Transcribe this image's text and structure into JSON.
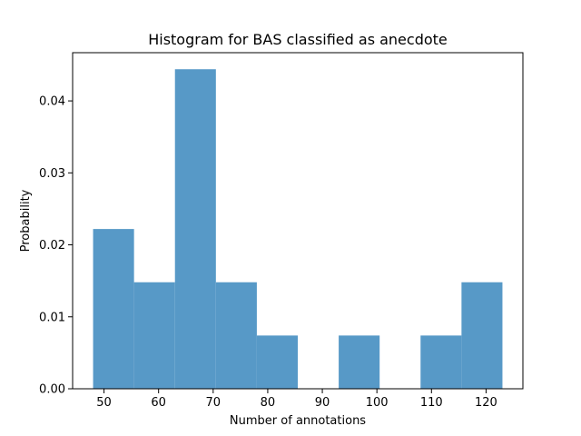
{
  "chart_data": {
    "type": "bar",
    "title": "Histogram for BAS classified as anecdote",
    "xlabel": "Number of annotations",
    "ylabel": "Probability",
    "xlim": [
      44.25,
      126.75
    ],
    "ylim": [
      0,
      0.0467
    ],
    "grid": false,
    "bar_color": "#5799c7",
    "bins": [
      {
        "x0": 48.0,
        "x1": 55.5,
        "value": 0.0222
      },
      {
        "x0": 55.5,
        "x1": 63.0,
        "value": 0.0148
      },
      {
        "x0": 63.0,
        "x1": 70.5,
        "value": 0.0444
      },
      {
        "x0": 70.5,
        "x1": 78.0,
        "value": 0.0148
      },
      {
        "x0": 78.0,
        "x1": 85.5,
        "value": 0.0074
      },
      {
        "x0": 85.5,
        "x1": 93.0,
        "value": 0
      },
      {
        "x0": 93.0,
        "x1": 100.5,
        "value": 0.0074
      },
      {
        "x0": 100.5,
        "x1": 108.0,
        "value": 0
      },
      {
        "x0": 108.0,
        "x1": 115.5,
        "value": 0.0074
      },
      {
        "x0": 115.5,
        "x1": 123.0,
        "value": 0.0148
      }
    ],
    "xticks": [
      {
        "value": 50,
        "label": "50"
      },
      {
        "value": 60,
        "label": "60"
      },
      {
        "value": 70,
        "label": "70"
      },
      {
        "value": 80,
        "label": "80"
      },
      {
        "value": 90,
        "label": "90"
      },
      {
        "value": 100,
        "label": "100"
      },
      {
        "value": 110,
        "label": "110"
      },
      {
        "value": 120,
        "label": "120"
      }
    ],
    "yticks": [
      {
        "value": 0.0,
        "label": "0.00"
      },
      {
        "value": 0.01,
        "label": "0.01"
      },
      {
        "value": 0.02,
        "label": "0.02"
      },
      {
        "value": 0.03,
        "label": "0.03"
      },
      {
        "value": 0.04,
        "label": "0.04"
      }
    ]
  }
}
